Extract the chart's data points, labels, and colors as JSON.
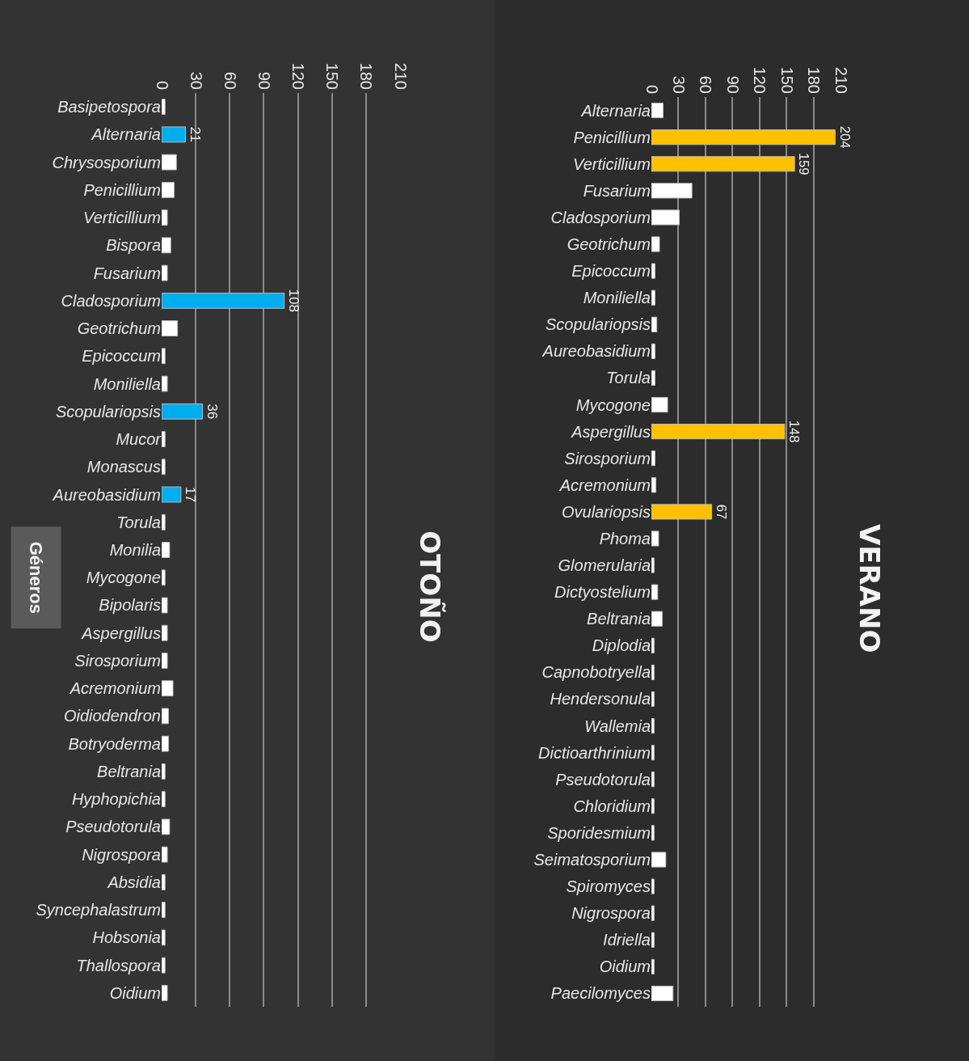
{
  "chart_data": [
    {
      "type": "bar",
      "title": "OTOÑO",
      "ylabel": "Géneros",
      "orientation": "horizontal",
      "grid": "x",
      "categories": [
        "Basipetospora",
        "Alternaria",
        "Chrysosporium",
        "Penicillium",
        "Verticillium",
        "Bispora",
        "Fusarium",
        "Cladosporium",
        "Geotrichum",
        "Epicoccum",
        "Moniliella",
        "Scopulariopsis",
        "Mucor",
        "Monascus",
        "Aureobasidium",
        "Torula",
        "Monilia",
        "Mycogone",
        "Bipolaris",
        "Aspergillus",
        "Sirosporium",
        "Acremonium",
        "Oidiodendron",
        "Botryoderma",
        "Beltrania",
        "Hyphopichia",
        "Pseudotorula",
        "Nigrospora",
        "Absidia",
        "Syncephalastrum",
        "Hobsonia",
        "Thallospora",
        "Oidium"
      ],
      "values": [
        3,
        21,
        13,
        11,
        5,
        8,
        5,
        108,
        14,
        3,
        5,
        36,
        3,
        3,
        17,
        3,
        7,
        3,
        5,
        5,
        5,
        10,
        6,
        6,
        3,
        3,
        7,
        5,
        3,
        3,
        3,
        3,
        5
      ],
      "colors": [
        "#ffffff",
        "#00aeef",
        "#ffffff",
        "#ffffff",
        "#ffffff",
        "#ffffff",
        "#ffffff",
        "#00aeef",
        "#ffffff",
        "#ffffff",
        "#ffffff",
        "#00aeef",
        "#ffffff",
        "#ffffff",
        "#00aeef",
        "#ffffff",
        "#ffffff",
        "#ffffff",
        "#ffffff",
        "#ffffff",
        "#ffffff",
        "#ffffff",
        "#ffffff",
        "#ffffff",
        "#ffffff",
        "#ffffff",
        "#ffffff",
        "#ffffff",
        "#ffffff",
        "#ffffff",
        "#ffffff",
        "#ffffff",
        "#ffffff"
      ],
      "value_labels": [
        null,
        "21",
        null,
        null,
        null,
        null,
        null,
        "108",
        null,
        null,
        null,
        "36",
        null,
        null,
        "17",
        null,
        null,
        null,
        null,
        null,
        null,
        null,
        null,
        null,
        null,
        null,
        null,
        null,
        null,
        null,
        null,
        null,
        null
      ],
      "xlim": [
        0,
        210
      ],
      "xticks": [
        0,
        30,
        60,
        90,
        120,
        150,
        180,
        210
      ]
    },
    {
      "type": "bar",
      "title": "VERANO",
      "orientation": "horizontal",
      "grid": "x",
      "categories": [
        "Alternaria",
        "Penicillium",
        "Verticillium",
        "Fusarium",
        "Cladosporium",
        "Geotrichum",
        "Epicoccum",
        "Moniliella",
        "Scopulariopsis",
        "Aureobasidium",
        "Torula",
        "Mycogone",
        "Aspergillus",
        "Sirosporium",
        "Acremonium",
        "Ovulariopsis",
        "Phoma",
        "Glomerularia",
        "Dictyostelium",
        "Beltrania",
        "Diplodia",
        "Capnobotryella",
        "Hendersonula",
        "Wallemia",
        "Dictioarthrinium",
        "Pseudotorula",
        "Chloridium",
        "Sporidesmium",
        "Seimatosporium",
        "Spiromyces",
        "Nigrospora",
        "Idriella",
        "Oidium",
        "Paecilomyces"
      ],
      "values": [
        13,
        204,
        159,
        45,
        31,
        9,
        4,
        4,
        6,
        4,
        4,
        18,
        148,
        4,
        5,
        67,
        8,
        3,
        7,
        12,
        3,
        3,
        3,
        3,
        3,
        3,
        3,
        3,
        16,
        3,
        3,
        3,
        3,
        24
      ],
      "colors": [
        "#ffffff",
        "#ffc000",
        "#ffc000",
        "#ffffff",
        "#ffffff",
        "#ffffff",
        "#ffffff",
        "#ffffff",
        "#ffffff",
        "#ffffff",
        "#ffffff",
        "#ffffff",
        "#ffc000",
        "#ffffff",
        "#ffffff",
        "#ffc000",
        "#ffffff",
        "#ffffff",
        "#ffffff",
        "#ffffff",
        "#ffffff",
        "#ffffff",
        "#ffffff",
        "#ffffff",
        "#ffffff",
        "#ffffff",
        "#ffffff",
        "#ffffff",
        "#ffffff",
        "#ffffff",
        "#ffffff",
        "#ffffff",
        "#ffffff",
        "#ffffff"
      ],
      "value_labels": [
        null,
        "204",
        "159",
        null,
        null,
        null,
        null,
        null,
        null,
        null,
        null,
        null,
        "148",
        null,
        null,
        "67",
        null,
        null,
        null,
        null,
        null,
        null,
        null,
        null,
        null,
        null,
        null,
        null,
        null,
        null,
        null,
        null,
        null,
        null
      ],
      "xlim": [
        0,
        210
      ],
      "xticks": [
        0,
        30,
        60,
        90,
        120,
        150,
        180,
        210
      ]
    }
  ]
}
